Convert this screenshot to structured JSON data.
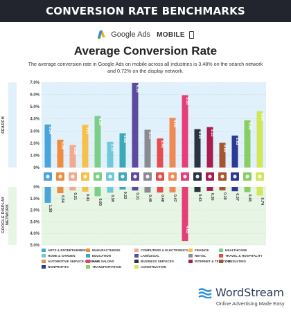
{
  "header": {
    "banner_title": "CONVERSION RATE BENCHMARKS"
  },
  "platform": {
    "name": "Google Ads",
    "device": "MOBILE",
    "logo_icon": "google-ads-logo-icon",
    "device_icon": "phone-icon"
  },
  "colors": {
    "banner_bg": "#23252e",
    "search_bg": "#e1f1fb",
    "display_bg": "#e7f5e4",
    "grid": "#c5cdd3",
    "ws_blue": "#2b8fd8"
  },
  "side_labels": {
    "top": "SEARCH",
    "bottom": "GOOGLE DISPLAY NETWORK"
  },
  "chart_data": {
    "type": "bar",
    "title": "Average Conversion Rate",
    "subtitle": "The average conversion rate in Google Ads on mobile across all industries is 3.48% on the search network and 0.72% on the display network.",
    "categories": [
      "Arts & Entertainment",
      "Manufacturing",
      "Computers & Electronics",
      "Finance",
      "Healthcare",
      "Home & Garden",
      "Education",
      "Law/Legal",
      "Retail",
      "Travel & Hospitality",
      "Automotive Service & Repair",
      "Hair Salons",
      "Business Services",
      "Internet & Telecom",
      "Consulting",
      "Nonprofits",
      "Transportation",
      "Construction"
    ],
    "colors": [
      "#4aa3d9",
      "#ee8d3f",
      "#f2a98f",
      "#f6c04a",
      "#7ccf88",
      "#71c8dc",
      "#3ba9b8",
      "#5b4a9f",
      "#8a8a92",
      "#e64d4d",
      "#f08a55",
      "#e63e78",
      "#2a3340",
      "#a81d4d",
      "#a5562e",
      "#2c3994",
      "#87cf62",
      "#d2e65c"
    ],
    "icons": [
      "ticket-icon",
      "factory-icon",
      "monitor-icon",
      "coins-icon",
      "medical-cross-icon",
      "house-icon",
      "graduation-cap-icon",
      "gavel-icon",
      "shopping-bag-icon",
      "airplane-icon",
      "car-icon",
      "hair-dryer-icon",
      "handshake-icon",
      "wifi-icon",
      "briefcase-icon",
      "heart-hands-icon",
      "truck-icon",
      "crane-icon"
    ],
    "series": [
      {
        "name": "Search",
        "values": [
          3.54,
          2.29,
          1.85,
          3.51,
          4.24,
          2.12,
          2.82,
          6.95,
          3.11,
          2.4,
          4.09,
          5.95,
          3.16,
          3.33,
          2.04,
          2.63,
          3.89,
          4.64
        ]
      },
      {
        "name": "Google Display Network",
        "values": [
          1.36,
          0.54,
          0.31,
          0.41,
          0.8,
          0.5,
          0.22,
          0.31,
          0.49,
          0.48,
          0.47,
          4.65,
          0.43,
          0.35,
          0.3,
          0.37,
          0.45,
          0.74
        ]
      }
    ],
    "search_labels": [
      "3.54",
      "2.29",
      "1.85",
      "3.51",
      "4.24",
      "2.12",
      "2.82",
      "6.95",
      "3.11",
      "2.40",
      "4.09",
      "5.95",
      "3.16",
      "3.33",
      "2.04",
      "2.63",
      "3.89",
      "4.64"
    ],
    "display_labels": [
      "1.36",
      "0.54",
      "0.31",
      "0.41",
      "0.80",
      "0.50",
      "0.22",
      "0.31",
      "0.49",
      "0.48",
      "0.47",
      "4.65",
      "0.43",
      "0.35",
      "0.30",
      "0.37",
      "0.45",
      "0.74"
    ],
    "y_ticks_search": [
      "0%",
      "1.0%",
      "2.0%",
      "3.0%",
      "4.0%",
      "5.0%",
      "6.0%",
      "7.0%"
    ],
    "y_ticks_display": [
      "0%",
      "1.0%",
      "2.0%",
      "3.0%",
      "4.0%",
      "5.0%"
    ],
    "ylim_search": [
      0,
      7
    ],
    "ylim_display": [
      0,
      5
    ],
    "grid": true,
    "legend_position": "bottom",
    "legend": [
      "ARTS & ENTERTAINMENT",
      "MANUFACTURING",
      "COMPUTERS & ELECTRONICS",
      "FINANCE",
      "HEALTHCARE",
      "HOME & GARDEN",
      "EDUCATION",
      "LAW/LEGAL",
      "RETAIL",
      "TRAVEL & HOSPITALITY",
      "AUTOMOTIVE SERVICE & REPAIR",
      "HAIR SALONS",
      "BUSINESS SERVICES",
      "INTERNET & TELECOM",
      "CONSULTING",
      "NONPROFITS",
      "TRANSPORTATION",
      "CONSTRUCTION"
    ]
  },
  "footer": {
    "brand": "WordStream",
    "tagline": "Online Advertising Made Easy",
    "logo_icon": "wordstream-logo-icon"
  }
}
